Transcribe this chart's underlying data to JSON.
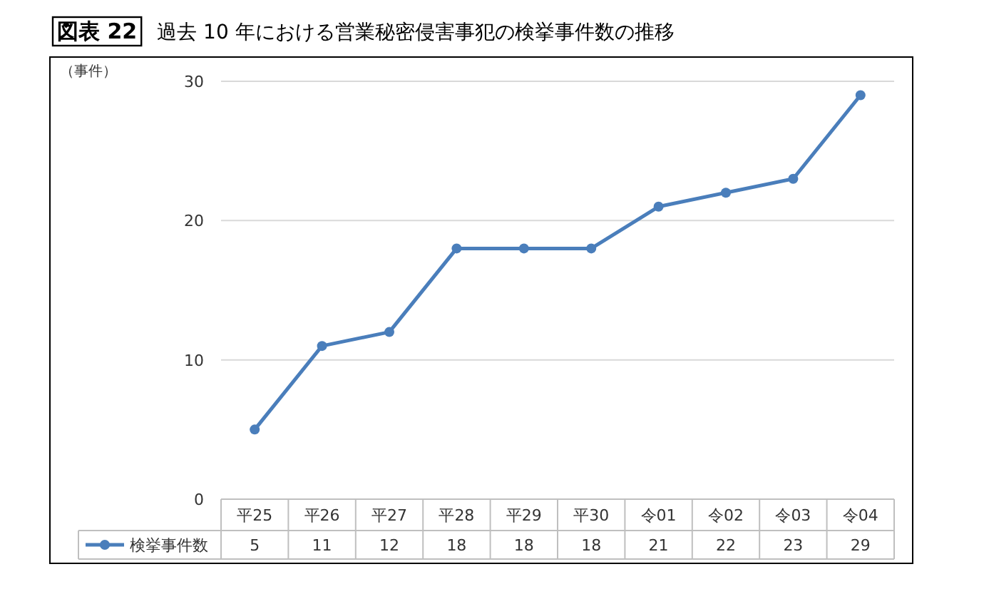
{
  "chart_data": {
    "type": "line",
    "title": "図表 22",
    "subtitle": "過去 10 年における営業秘密侵害事犯の検挙事件数の推移",
    "ylabel": "（事件）",
    "categories": [
      "平25",
      "平26",
      "平27",
      "平28",
      "平29",
      "平30",
      "令01",
      "令02",
      "令03",
      "令04"
    ],
    "series": [
      {
        "name": "検挙事件数",
        "color": "#4a7ebb",
        "values": [
          5,
          11,
          12,
          18,
          18,
          18,
          21,
          22,
          23,
          29
        ]
      }
    ],
    "ylim": [
      0,
      30
    ],
    "yticks": [
      0,
      10,
      20,
      30
    ],
    "grid": "y",
    "legend": "bottom",
    "marker": "circle",
    "line_style": "solid",
    "data_labels": true
  }
}
